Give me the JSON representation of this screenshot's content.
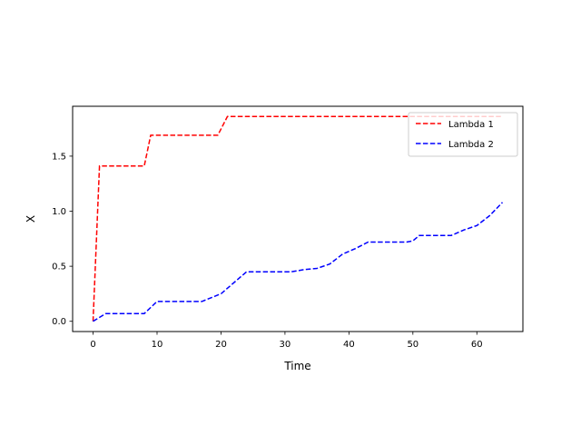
{
  "chart_data": {
    "type": "line",
    "title": "",
    "xlabel": "Time",
    "ylabel": "X",
    "xlim": [
      -3.2,
      67.2
    ],
    "ylim": [
      -0.093,
      1.953
    ],
    "xticks": [
      0,
      10,
      20,
      30,
      40,
      50,
      60
    ],
    "yticks": [
      0.0,
      0.5,
      1.0,
      1.5
    ],
    "xtick_labels": [
      "0",
      "10",
      "20",
      "30",
      "40",
      "50",
      "60"
    ],
    "ytick_labels": [
      "0.0",
      "0.5",
      "1.0",
      "1.5"
    ],
    "grid": false,
    "legend_position": "top-right",
    "series": [
      {
        "name": "Lambda 1",
        "color": "#ff0000",
        "linestyle": "dashed",
        "points": [
          [
            0,
            0.0
          ],
          [
            1,
            1.41
          ],
          [
            8,
            1.41
          ],
          [
            9,
            1.69
          ],
          [
            19.5,
            1.69
          ],
          [
            21,
            1.86
          ],
          [
            64,
            1.86
          ]
        ]
      },
      {
        "name": "Lambda 2",
        "color": "#0000ff",
        "linestyle": "dashed",
        "points": [
          [
            0,
            0.0
          ],
          [
            2,
            0.07
          ],
          [
            8,
            0.07
          ],
          [
            10,
            0.18
          ],
          [
            17,
            0.18
          ],
          [
            20,
            0.25
          ],
          [
            24,
            0.45
          ],
          [
            31,
            0.45
          ],
          [
            33,
            0.47
          ],
          [
            35,
            0.48
          ],
          [
            37,
            0.52
          ],
          [
            39,
            0.61
          ],
          [
            41,
            0.66
          ],
          [
            43,
            0.72
          ],
          [
            49,
            0.72
          ],
          [
            50,
            0.73
          ],
          [
            51,
            0.78
          ],
          [
            56,
            0.78
          ],
          [
            58,
            0.83
          ],
          [
            60,
            0.87
          ],
          [
            62,
            0.96
          ],
          [
            64,
            1.08
          ]
        ]
      }
    ]
  }
}
